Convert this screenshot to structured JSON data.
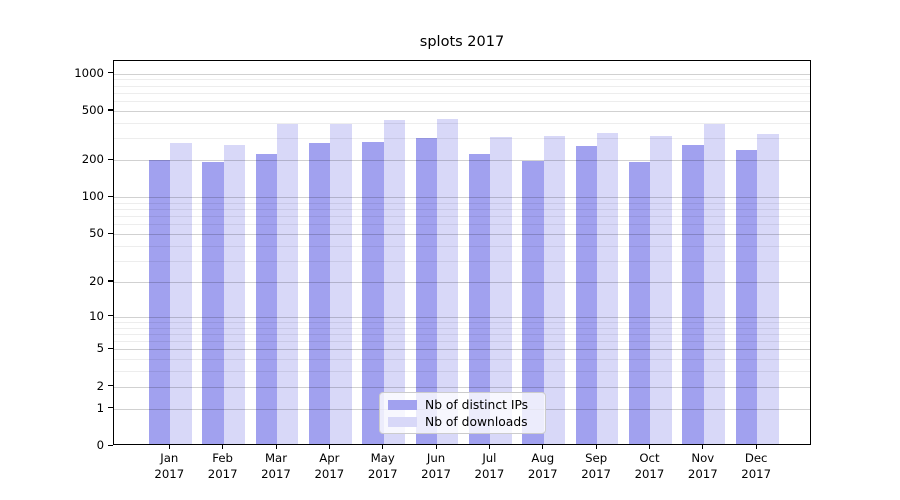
{
  "title": "splots 2017",
  "legend": {
    "items": [
      {
        "label": "Nb of distinct IPs",
        "color": "#a1a1ef"
      },
      {
        "label": "Nb of downloads",
        "color": "#d8d8f8"
      }
    ]
  },
  "chart_data": {
    "type": "bar",
    "title": "splots 2017",
    "categories": [
      "Jan 2017",
      "Feb 2017",
      "Mar 2017",
      "Apr 2017",
      "May 2017",
      "Jun 2017",
      "Jul 2017",
      "Aug 2017",
      "Sep 2017",
      "Oct 2017",
      "Nov 2017",
      "Dec 2017"
    ],
    "x_tick_months": [
      "Jan",
      "Feb",
      "Mar",
      "Apr",
      "May",
      "Jun",
      "Jul",
      "Aug",
      "Sep",
      "Oct",
      "Nov",
      "Dec"
    ],
    "x_tick_year": "2017",
    "series": [
      {
        "name": "Nb of distinct IPs",
        "color": "#a1a1ef",
        "values": [
          195,
          186,
          218,
          267,
          272,
          290,
          215,
          190,
          251,
          188,
          258,
          235
        ]
      },
      {
        "name": "Nb of downloads",
        "color": "#d8d8f8",
        "values": [
          264,
          257,
          380,
          376,
          410,
          418,
          297,
          300,
          320,
          300,
          375,
          315
        ]
      }
    ],
    "xlabel": "",
    "ylabel": "",
    "yscale": "log(1+y)",
    "y_ticks": [
      0,
      1,
      2,
      5,
      10,
      20,
      50,
      100,
      200,
      500,
      1000
    ],
    "y_minor_ticks": [
      3,
      4,
      6,
      7,
      8,
      9,
      30,
      40,
      60,
      70,
      80,
      90,
      300,
      400,
      600,
      700,
      800,
      900
    ],
    "ylim": [
      0,
      1266
    ],
    "grid": "major+minor, drawn over bars",
    "legend_position": "lower center"
  }
}
